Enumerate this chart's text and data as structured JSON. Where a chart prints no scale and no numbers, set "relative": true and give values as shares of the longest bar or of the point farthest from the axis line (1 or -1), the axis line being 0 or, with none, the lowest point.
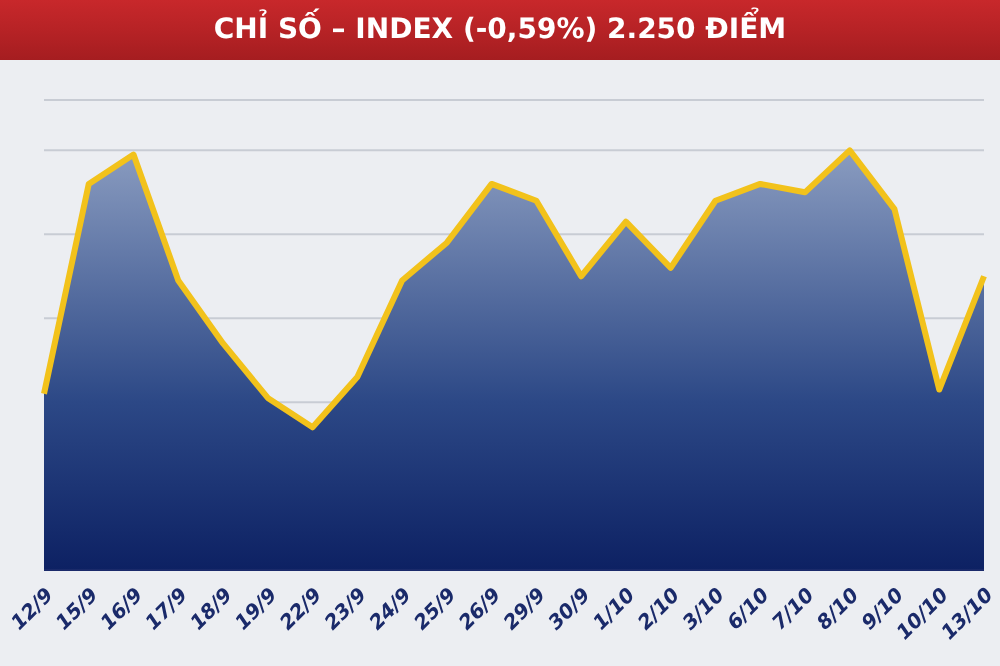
{
  "chart_data": {
    "type": "area",
    "title": "CHỈ SỐ – INDEX (-0,59%) 2.250 ĐIỂM",
    "relative": true,
    "grid": true,
    "categories": [
      "12/9",
      "15/9",
      "16/9",
      "17/9",
      "18/9",
      "19/9",
      "22/9",
      "23/9",
      "24/9",
      "25/9",
      "26/9",
      "29/9",
      "30/9",
      "1/10",
      "2/10",
      "3/10",
      "6/10",
      "7/10",
      "8/10",
      "9/10",
      "10/10",
      "13/10"
    ],
    "series": [
      {
        "color": "#f2c21b",
        "values": [
          0.42,
          0.92,
          0.99,
          0.69,
          0.54,
          0.41,
          0.34,
          0.46,
          0.69,
          0.78,
          0.92,
          0.88,
          0.7,
          0.83,
          0.72,
          0.88,
          0.92,
          0.9,
          1,
          0.86,
          0.43,
          0.7
        ]
      }
    ]
  }
}
